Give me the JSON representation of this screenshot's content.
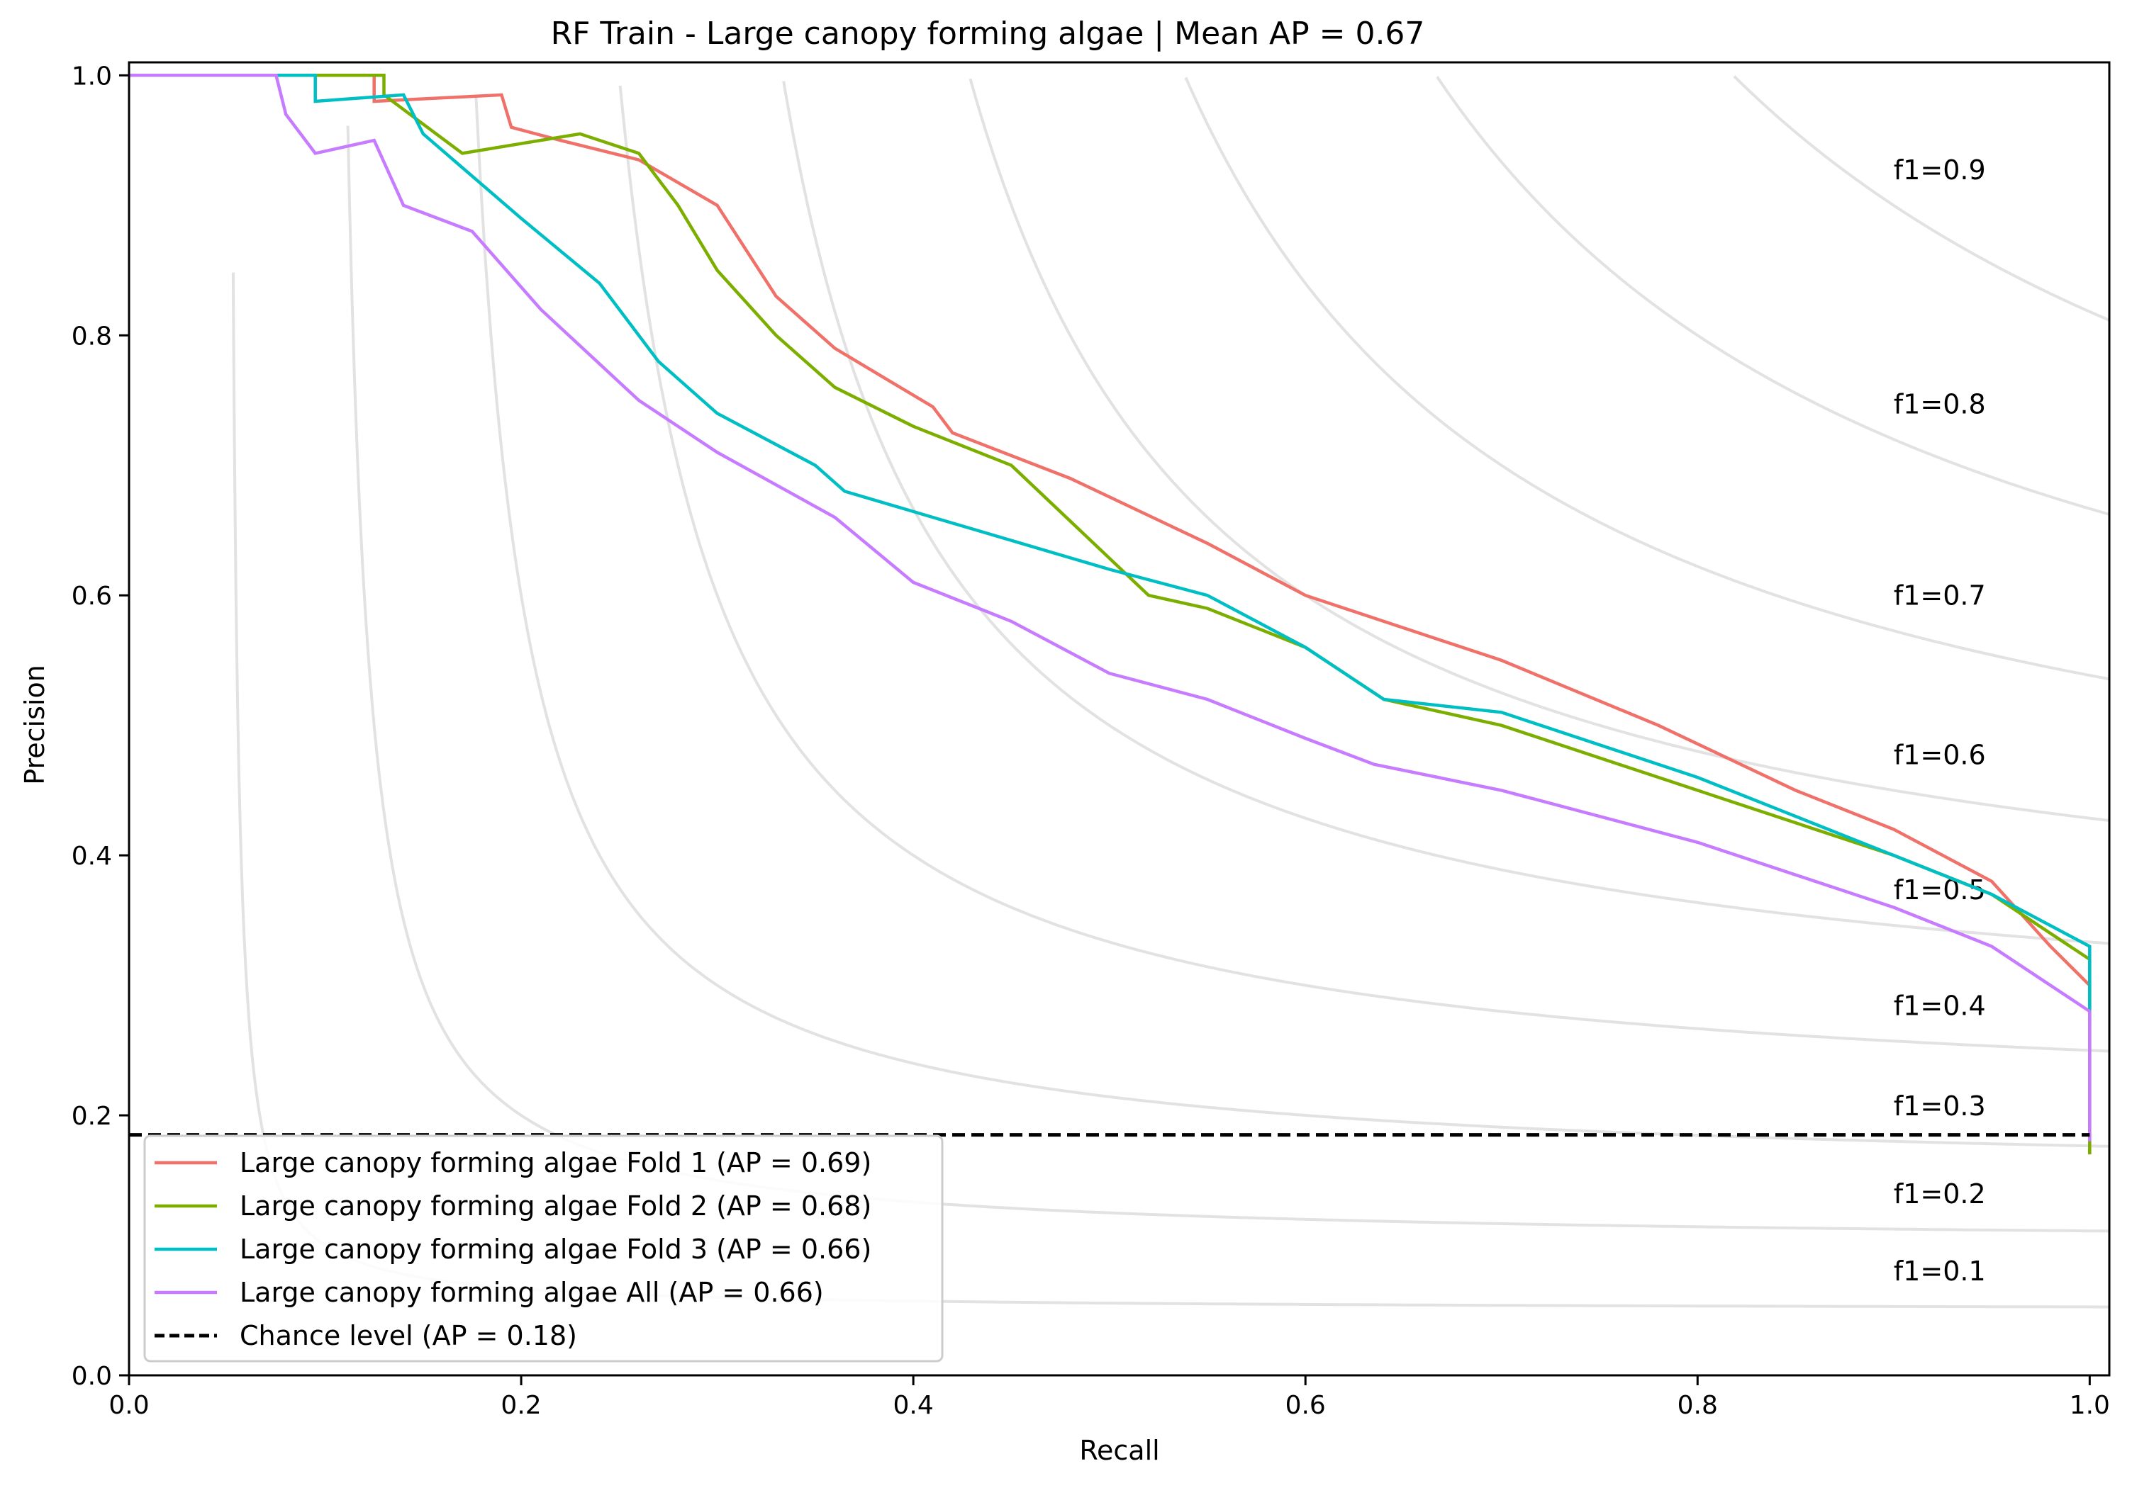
{
  "chart_data": {
    "type": "line",
    "title": "RF Train - Large canopy forming algae | Mean AP = 0.67",
    "xlabel": "Recall",
    "ylabel": "Precision",
    "xlim": [
      0.0,
      1.01
    ],
    "ylim": [
      0.0,
      1.01
    ],
    "xticks": [
      "0.0",
      "0.2",
      "0.4",
      "0.6",
      "0.8",
      "1.0"
    ],
    "yticks": [
      "0.0",
      "0.2",
      "0.4",
      "0.6",
      "0.8",
      "1.0"
    ],
    "grid": false,
    "legend_position": "lower-left",
    "iso_f1": {
      "values": [
        0.1,
        0.2,
        0.3,
        0.4,
        0.5,
        0.6,
        0.7,
        0.8,
        0.9
      ],
      "labels": [
        "f1=0.1",
        "f1=0.2",
        "f1=0.3",
        "f1=0.4",
        "f1=0.5",
        "f1=0.6",
        "f1=0.7",
        "f1=0.8",
        "f1=0.9"
      ],
      "label_x": 0.9,
      "color": "#e2e2e2"
    },
    "series": [
      {
        "name": "Large canopy forming algae Fold 1 (AP = 0.69)",
        "color": "#f0716a",
        "dashed": false,
        "x": [
          0,
          0.125,
          0.125,
          0.19,
          0.195,
          0.22,
          0.26,
          0.3,
          0.33,
          0.36,
          0.41,
          0.42,
          0.48,
          0.55,
          0.6,
          0.65,
          0.7,
          0.78,
          0.85,
          0.9,
          0.95,
          0.98,
          1.0,
          1.0
        ],
        "y": [
          1.0,
          1.0,
          0.98,
          0.985,
          0.96,
          0.95,
          0.935,
          0.9,
          0.83,
          0.79,
          0.745,
          0.725,
          0.69,
          0.64,
          0.6,
          0.575,
          0.55,
          0.5,
          0.45,
          0.42,
          0.38,
          0.33,
          0.3,
          0.17
        ]
      },
      {
        "name": "Large canopy forming algae Fold 2 (AP = 0.68)",
        "color": "#7cae00",
        "dashed": false,
        "x": [
          0,
          0.13,
          0.13,
          0.17,
          0.23,
          0.26,
          0.28,
          0.3,
          0.33,
          0.36,
          0.4,
          0.45,
          0.52,
          0.55,
          0.6,
          0.64,
          0.7,
          0.8,
          0.9,
          0.95,
          1.0,
          1.0
        ],
        "y": [
          1.0,
          1.0,
          0.985,
          0.94,
          0.955,
          0.94,
          0.9,
          0.85,
          0.8,
          0.76,
          0.73,
          0.7,
          0.6,
          0.59,
          0.56,
          0.52,
          0.5,
          0.45,
          0.4,
          0.37,
          0.32,
          0.17
        ]
      },
      {
        "name": "Large canopy forming algae Fold 3 (AP = 0.66)",
        "color": "#00bfc4",
        "dashed": false,
        "x": [
          0,
          0.095,
          0.095,
          0.14,
          0.15,
          0.2,
          0.24,
          0.27,
          0.3,
          0.35,
          0.365,
          0.41,
          0.5,
          0.55,
          0.6,
          0.64,
          0.7,
          0.8,
          0.9,
          0.95,
          1.0,
          1.0
        ],
        "y": [
          1.0,
          1.0,
          0.98,
          0.985,
          0.955,
          0.89,
          0.84,
          0.78,
          0.74,
          0.7,
          0.68,
          0.66,
          0.62,
          0.6,
          0.56,
          0.52,
          0.51,
          0.46,
          0.4,
          0.37,
          0.33,
          0.27
        ]
      },
      {
        "name": "Large canopy forming algae All (AP = 0.66)",
        "color": "#c77cff",
        "dashed": false,
        "x": [
          0,
          0.075,
          0.08,
          0.095,
          0.125,
          0.14,
          0.175,
          0.21,
          0.26,
          0.3,
          0.36,
          0.4,
          0.45,
          0.5,
          0.55,
          0.6,
          0.635,
          0.7,
          0.8,
          0.9,
          0.95,
          1.0,
          1.0
        ],
        "y": [
          1.0,
          1.0,
          0.97,
          0.94,
          0.95,
          0.9,
          0.88,
          0.82,
          0.75,
          0.71,
          0.66,
          0.61,
          0.58,
          0.54,
          0.52,
          0.49,
          0.47,
          0.45,
          0.41,
          0.36,
          0.33,
          0.28,
          0.18
        ]
      },
      {
        "name": "Chance level (AP = 0.18)",
        "color": "#000000",
        "dashed": true,
        "x": [
          0,
          1.0
        ],
        "y": [
          0.185,
          0.185
        ]
      }
    ]
  }
}
